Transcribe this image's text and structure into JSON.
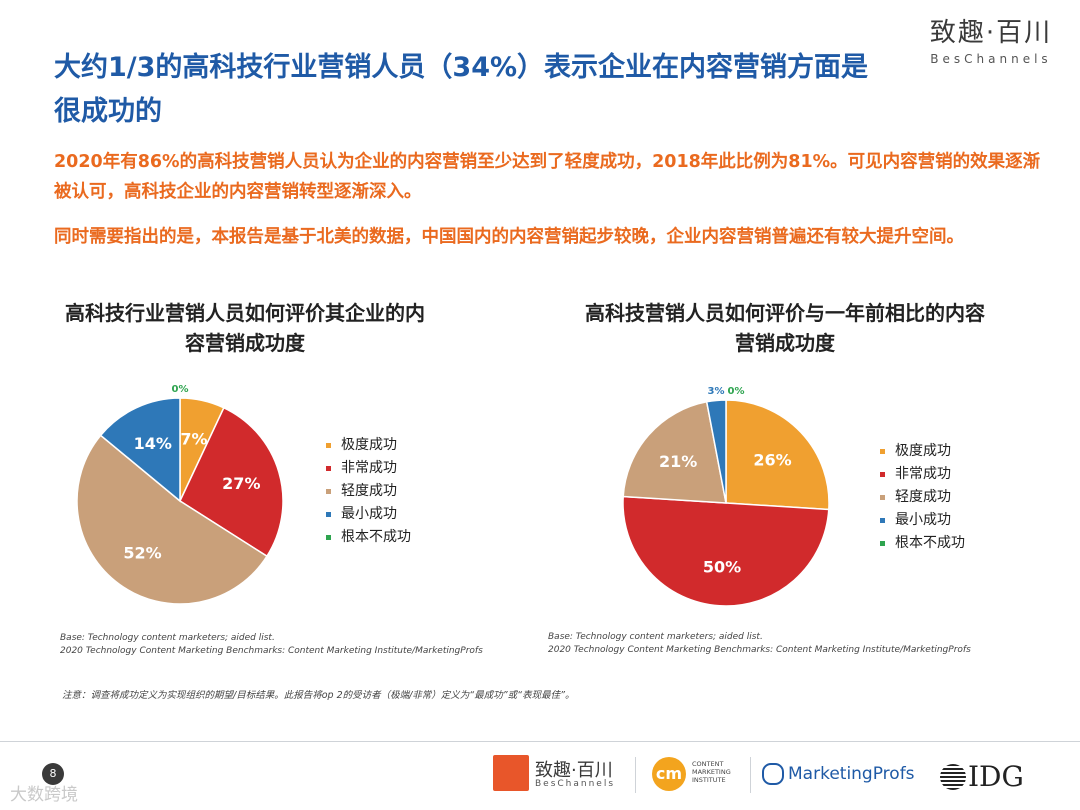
{
  "brand": {
    "logo_cn": "致趣·百川",
    "logo_en": "BesChannels"
  },
  "slide": {
    "title": "大约1/3的高科技行业营销人员（34%）表示企业在内容营销方面是很成功的",
    "para1": "2020年有86%的高科技营销人员认为企业的内容营销至少达到了轻度成功，2018年此比例为81%。可见内容营销的效果逐渐被认可，高科技企业的内容营销转型逐渐深入。",
    "para2": "同时需要指出的是，本报告是基于北美的数据，中国国内的内容营销起步较晚，企业内容营销普遍还有较大提升空间。",
    "note": "注意：调查将成功定义为实现组织的期望/目标结果。此报告将op 2的受访者（极端/非常）定义为“最成功”或“表现最佳”。",
    "page_number": "8"
  },
  "colors": {
    "title": "#1f5aa6",
    "body_text": "#ea6a1f",
    "slices": [
      "#f0a030",
      "#d12a2c",
      "#c9a07a",
      "#2e78b8",
      "#2ea44f"
    ]
  },
  "chart_data": [
    {
      "type": "pie",
      "title": "高科技行业营销人员如何评价其企业的内容营销成功度",
      "categories": [
        "极度成功",
        "非常成功",
        "轻度成功",
        "最小成功",
        "根本不成功"
      ],
      "values": [
        7,
        27,
        52,
        14,
        0
      ],
      "labels": [
        "7%",
        "27%",
        "52%",
        "14%",
        "0%"
      ],
      "legend_position": "right",
      "base": "Base: Technology content marketers; aided list.",
      "source": "2020 Technology Content Marketing Benchmarks: Content Marketing Institute/MarketingProfs"
    },
    {
      "type": "pie",
      "title": "高科技营销人员如何评价与一年前相比的内容营销成功度",
      "categories": [
        "极度成功",
        "非常成功",
        "轻度成功",
        "最小成功",
        "根本不成功"
      ],
      "values": [
        26,
        50,
        21,
        3,
        0
      ],
      "labels": [
        "26%",
        "50%",
        "21%",
        "3%",
        "0%"
      ],
      "legend_position": "right",
      "base": "Base: Technology content marketers; aided list.",
      "source": "2020 Technology Content Marketing Benchmarks: Content Marketing Institute/MarketingProfs"
    }
  ],
  "footer": {
    "logo_cn": "致趣·百川",
    "logo_en": "BesChannels",
    "cmi_mark": "cm",
    "cmi_text": [
      "CONTENT",
      "MARKETING",
      "INSTITUTE"
    ],
    "mprofs": "MarketingProfs",
    "idg": "IDG",
    "corner_watermark": "大数跨境"
  }
}
